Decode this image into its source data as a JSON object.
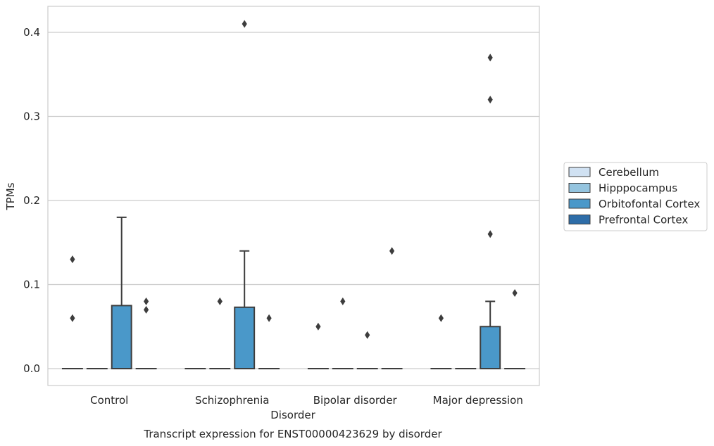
{
  "chart_data": {
    "type": "box",
    "title": "Transcript expression for ENST00000423629 by disorder",
    "xlabel": "Disorder",
    "ylabel": "TPMs",
    "ylim": [
      -0.02,
      0.43
    ],
    "yticks": [
      0.0,
      0.1,
      0.2,
      0.3,
      0.4
    ],
    "ytick_labels": [
      "0.0",
      "0.1",
      "0.2",
      "0.3",
      "0.4"
    ],
    "grid": "horizontal",
    "legend_position": "right",
    "categories": [
      "Control",
      "Schizophrenia",
      "Bipolar disorder",
      "Major depression"
    ],
    "series": [
      {
        "name": "Cerebellum",
        "color": "#d0e1f2",
        "boxes": [
          {
            "q1": 0,
            "median": 0,
            "q3": 0,
            "whisker_low": 0,
            "whisker_high": 0,
            "outliers": [
              0.13,
              0.06
            ]
          },
          {
            "q1": 0,
            "median": 0,
            "q3": 0,
            "whisker_low": 0,
            "whisker_high": 0,
            "outliers": []
          },
          {
            "q1": 0,
            "median": 0,
            "q3": 0,
            "whisker_low": 0,
            "whisker_high": 0,
            "outliers": [
              0.05
            ]
          },
          {
            "q1": 0,
            "median": 0,
            "q3": 0,
            "whisker_low": 0,
            "whisker_high": 0,
            "outliers": [
              0.06
            ]
          }
        ]
      },
      {
        "name": "Hipppocampus",
        "color": "#94c4df",
        "boxes": [
          {
            "q1": 0,
            "median": 0,
            "q3": 0,
            "whisker_low": 0,
            "whisker_high": 0,
            "outliers": []
          },
          {
            "q1": 0,
            "median": 0,
            "q3": 0,
            "whisker_low": 0,
            "whisker_high": 0,
            "outliers": [
              0.08
            ]
          },
          {
            "q1": 0,
            "median": 0,
            "q3": 0,
            "whisker_low": 0,
            "whisker_high": 0,
            "outliers": [
              0.08
            ]
          },
          {
            "q1": 0,
            "median": 0,
            "q3": 0,
            "whisker_low": 0,
            "whisker_high": 0,
            "outliers": []
          }
        ]
      },
      {
        "name": "Orbitofontal Cortex",
        "color": "#4a98c9",
        "boxes": [
          {
            "q1": 0,
            "median": 0,
            "q3": 0.075,
            "whisker_low": 0,
            "whisker_high": 0.18,
            "outliers": []
          },
          {
            "q1": 0,
            "median": 0,
            "q3": 0.073,
            "whisker_low": 0,
            "whisker_high": 0.14,
            "outliers": [
              0.41
            ]
          },
          {
            "q1": 0,
            "median": 0,
            "q3": 0,
            "whisker_low": 0,
            "whisker_high": 0,
            "outliers": [
              0.04
            ]
          },
          {
            "q1": 0,
            "median": 0,
            "q3": 0.05,
            "whisker_low": 0,
            "whisker_high": 0.08,
            "outliers": [
              0.37,
              0.32,
              0.16
            ]
          }
        ]
      },
      {
        "name": "Prefrontal Cortex",
        "color": "#2e6da8",
        "boxes": [
          {
            "q1": 0,
            "median": 0,
            "q3": 0,
            "whisker_low": 0,
            "whisker_high": 0,
            "outliers": [
              0.08,
              0.07
            ]
          },
          {
            "q1": 0,
            "median": 0,
            "q3": 0,
            "whisker_low": 0,
            "whisker_high": 0,
            "outliers": [
              0.06
            ]
          },
          {
            "q1": 0,
            "median": 0,
            "q3": 0,
            "whisker_low": 0,
            "whisker_high": 0,
            "outliers": [
              0.14
            ]
          },
          {
            "q1": 0,
            "median": 0,
            "q3": 0,
            "whisker_low": 0,
            "whisker_high": 0,
            "outliers": [
              0.09
            ]
          }
        ]
      }
    ]
  }
}
